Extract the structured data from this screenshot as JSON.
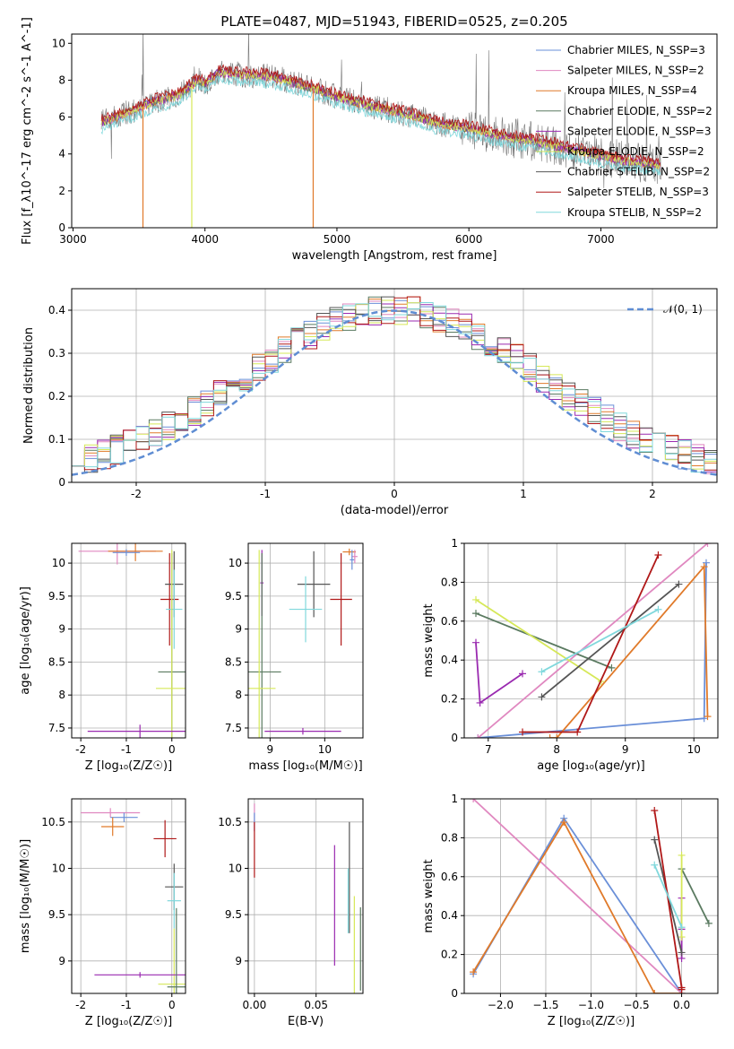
{
  "figure_title": "PLATE=0487, MJD=51943, FIBERID=0525, z=0.205",
  "colors": {
    "Chabrier MILES": "#6a8fd8",
    "Salpeter MILES": "#e088c0",
    "Kroupa MILES": "#e07a2a",
    "Chabrier ELODIE": "#5a7a60",
    "Salpeter ELODIE": "#9a2ab0",
    "Kroupa ELODIE": "#d6e858",
    "Chabrier STELIB": "#555555",
    "Salpeter STELIB": "#b01818",
    "Kroupa STELIB": "#80d8dc"
  },
  "chart_data": [
    {
      "id": "spectrum",
      "type": "line",
      "xlabel": "wavelength [Angstrom, rest frame]",
      "ylabel": "Flux [f_λ10^-17 erg cm^-2 s^-1 A^-1]",
      "xlim": [
        2990,
        7880
      ],
      "ylim": [
        0,
        10.5
      ],
      "xticks": [
        3000,
        4000,
        5000,
        6000,
        7000
      ],
      "yticks": [
        0,
        2,
        4,
        6,
        8,
        10
      ],
      "data_range": [
        3215,
        7455
      ],
      "legend": [
        {
          "label": "Chabrier MILES, N_SSP=3",
          "color": "#6a8fd8"
        },
        {
          "label": "Salpeter MILES, N_SSP=2",
          "color": "#e088c0"
        },
        {
          "label": "Kroupa MILES, N_SSP=4",
          "color": "#e07a2a"
        },
        {
          "label": "Chabrier ELODIE, N_SSP=2",
          "color": "#5a7a60"
        },
        {
          "label": "Salpeter ELODIE, N_SSP=3",
          "color": "#9a2ab0"
        },
        {
          "label": "Kroupa ELODIE, N_SSP=2",
          "color": "#d6e858"
        },
        {
          "label": "Chabrier STELIB, N_SSP=2",
          "color": "#555555"
        },
        {
          "label": "Salpeter STELIB, N_SSP=3",
          "color": "#b01818"
        },
        {
          "label": "Kroupa STELIB, N_SSP=2",
          "color": "#80d8dc"
        }
      ],
      "continuum_x": [
        3215,
        3400,
        3600,
        3800,
        3950,
        4000,
        4100,
        4300,
        4500,
        4800,
        5000,
        5200,
        5500,
        5800,
        6000,
        6300,
        6500,
        6800,
        7000,
        7200,
        7455
      ],
      "continuum_y": [
        5.7,
        6.2,
        6.8,
        7.2,
        8.0,
        7.8,
        8.4,
        8.3,
        8.2,
        7.6,
        7.1,
        6.7,
        6.2,
        5.6,
        5.4,
        4.9,
        4.7,
        4.2,
        3.9,
        3.6,
        3.4
      ],
      "dips": [
        {
          "x": 3530,
          "color": "#e07a2a"
        },
        {
          "x": 3900,
          "color": "#d6e858"
        },
        {
          "x": 4820,
          "color": "#e07a2a"
        }
      ]
    },
    {
      "id": "residuals",
      "type": "histogram",
      "xlabel": "(data-model)/error",
      "ylabel": "Normed distribution",
      "xlim": [
        -2.5,
        2.5
      ],
      "ylim": [
        0,
        0.45
      ],
      "xticks": [
        -2,
        -1,
        0,
        1,
        2
      ],
      "yticks": [
        0.0,
        0.1,
        0.2,
        0.3,
        0.4
      ],
      "bin_width": 0.1,
      "legend": [
        {
          "label": "𝒩(0, 1)",
          "color": "#5f8dd3"
        }
      ],
      "gaussian": {
        "mu": 0,
        "sigma": 1,
        "color": "#5f8dd3"
      }
    },
    {
      "id": "age_vs_Z",
      "type": "errorbar",
      "xlabel": "Z [log₁₀(Z/Z☉)]",
      "ylabel": "age  [log₁₀(age/yr)]",
      "xlim": [
        -2.2,
        0.3
      ],
      "ylim": [
        7.35,
        10.3
      ],
      "xticks": [
        -2,
        -1,
        0
      ],
      "yticks": [
        7.5,
        8.0,
        8.5,
        9.0,
        9.5,
        10.0
      ],
      "points": [
        {
          "color": "#e088c0",
          "x": -1.2,
          "y": 10.18,
          "xerr": 0.85,
          "yerr": 0.2
        },
        {
          "color": "#e07a2a",
          "x": -0.8,
          "y": 10.18,
          "xerr": 0.6,
          "yerr": 0.15
        },
        {
          "color": "#6a8fd8",
          "x": -1.0,
          "y": 10.16,
          "xerr": 0.3,
          "yerr": 0.05
        },
        {
          "color": "#b01818",
          "x": -0.05,
          "y": 9.45,
          "xerr": 0.2,
          "yerr": 0.7
        },
        {
          "color": "#555555",
          "x": 0.05,
          "y": 9.68,
          "xerr": 0.2,
          "yerr": 0.5
        },
        {
          "color": "#80d8dc",
          "x": 0.05,
          "y": 9.3,
          "xerr": 0.18,
          "yerr": 0.6
        },
        {
          "color": "#5a7a60",
          "x": 0.0,
          "y": 8.35,
          "xerr": 0.3,
          "yerr": 1.8
        },
        {
          "color": "#d6e858",
          "x": 0.0,
          "y": 8.1,
          "xerr": 0.35,
          "yerr": 2.1
        },
        {
          "color": "#9a2ab0",
          "x": -0.7,
          "y": 7.45,
          "xerr": 1.15,
          "yerr": 0.1
        }
      ]
    },
    {
      "id": "age_vs_mass",
      "type": "errorbar",
      "xlabel": "mass [log₁₀(M/M☉)]",
      "ylabel": "",
      "xlim": [
        8.6,
        10.7
      ],
      "ylim": [
        7.35,
        10.3
      ],
      "xticks": [
        9,
        10
      ],
      "yticks": [
        7.5,
        8.0,
        8.5,
        9.0,
        9.5,
        10.0
      ],
      "points": [
        {
          "color": "#e07a2a",
          "x": 10.45,
          "y": 10.17,
          "xerr": 0.12,
          "yerr": 0.05
        },
        {
          "color": "#e088c0",
          "x": 10.55,
          "y": 10.1,
          "xerr": 0.05,
          "yerr": 0.1
        },
        {
          "color": "#6a8fd8",
          "x": 10.5,
          "y": 10.05,
          "xerr": 0.04,
          "yerr": 0.15
        },
        {
          "color": "#9a2ab0",
          "x": 8.85,
          "y": 9.7,
          "xerr": 0.03,
          "yerr": 0.5
        },
        {
          "color": "#555555",
          "x": 9.8,
          "y": 9.68,
          "xerr": 0.3,
          "yerr": 0.5
        },
        {
          "color": "#b01818",
          "x": 10.3,
          "y": 9.45,
          "xerr": 0.2,
          "yerr": 0.7
        },
        {
          "color": "#80d8dc",
          "x": 9.65,
          "y": 9.3,
          "xerr": 0.3,
          "yerr": 0.5
        },
        {
          "color": "#5a7a60",
          "x": 8.85,
          "y": 8.35,
          "xerr": 0.35,
          "yerr": 1.8
        },
        {
          "color": "#d6e858",
          "x": 8.8,
          "y": 8.1,
          "xerr": 0.3,
          "yerr": 2.1
        },
        {
          "color": "#9a2ab0",
          "x": 9.6,
          "y": 7.45,
          "xerr": 0.7,
          "yerr": 0.05
        }
      ]
    },
    {
      "id": "mass_weight_vs_age",
      "type": "line",
      "xlabel": "age  [log₁₀(age/yr)]",
      "ylabel": "mass weight",
      "xlim": [
        6.65,
        10.35
      ],
      "ylim": [
        0,
        1
      ],
      "xticks": [
        7,
        8,
        9,
        10
      ],
      "yticks": [
        0.0,
        0.2,
        0.4,
        0.6,
        0.8,
        1.0
      ],
      "series": [
        {
          "color": "#6a8fd8",
          "x": [
            6.85,
            10.15,
            10.18
          ],
          "y": [
            0.0,
            0.1,
            0.9
          ]
        },
        {
          "color": "#e088c0",
          "x": [
            6.85,
            10.2
          ],
          "y": [
            0.0,
            1.0
          ]
        },
        {
          "color": "#e07a2a",
          "x": [
            7.9,
            8.0,
            10.15,
            10.2
          ],
          "y": [
            0.0,
            0.0,
            0.88,
            0.11
          ]
        },
        {
          "color": "#5a7a60",
          "x": [
            6.82,
            8.8
          ],
          "y": [
            0.64,
            0.36
          ]
        },
        {
          "color": "#9a2ab0",
          "x": [
            6.82,
            6.88,
            7.5
          ],
          "y": [
            0.49,
            0.18,
            0.33
          ]
        },
        {
          "color": "#d6e858",
          "x": [
            6.82,
            8.65
          ],
          "y": [
            0.71,
            0.29
          ]
        },
        {
          "color": "#555555",
          "x": [
            7.78,
            9.78
          ],
          "y": [
            0.21,
            0.79
          ]
        },
        {
          "color": "#b01818",
          "x": [
            7.5,
            8.3,
            9.48
          ],
          "y": [
            0.03,
            0.03,
            0.94
          ]
        },
        {
          "color": "#80d8dc",
          "x": [
            7.78,
            9.48
          ],
          "y": [
            0.34,
            0.66
          ]
        }
      ]
    },
    {
      "id": "mass_vs_Z",
      "type": "errorbar",
      "xlabel": "Z [log₁₀(Z/Z☉)]",
      "ylabel": "mass [log₁₀(M/M☉)]",
      "xlim": [
        -2.2,
        0.3
      ],
      "ylim": [
        8.65,
        10.75
      ],
      "xticks": [
        -2,
        -1,
        0
      ],
      "yticks": [
        9.0,
        9.5,
        10.0,
        10.5
      ],
      "points": [
        {
          "color": "#e088c0",
          "x": -1.35,
          "y": 10.6,
          "xerr": 0.65,
          "yerr": 0.05
        },
        {
          "color": "#6a8fd8",
          "x": -1.05,
          "y": 10.55,
          "xerr": 0.3,
          "yerr": 0.05
        },
        {
          "color": "#e07a2a",
          "x": -1.3,
          "y": 10.45,
          "xerr": 0.25,
          "yerr": 0.1
        },
        {
          "color": "#b01818",
          "x": -0.15,
          "y": 10.32,
          "xerr": 0.25,
          "yerr": 0.2
        },
        {
          "color": "#555555",
          "x": 0.05,
          "y": 9.8,
          "xerr": 0.2,
          "yerr": 0.25
        },
        {
          "color": "#80d8dc",
          "x": 0.05,
          "y": 9.65,
          "xerr": 0.15,
          "yerr": 0.3
        },
        {
          "color": "#d6e858",
          "x": 0.05,
          "y": 8.75,
          "xerr": 0.35,
          "yerr": 0.6
        },
        {
          "color": "#9a2ab0",
          "x": -0.7,
          "y": 8.85,
          "xerr": 1.0,
          "yerr": 0.03
        },
        {
          "color": "#5a7a60",
          "x": 0.1,
          "y": 8.72,
          "xerr": 0.2,
          "yerr": 0.85
        }
      ]
    },
    {
      "id": "mass_vs_ebv",
      "type": "errorbar",
      "xlabel": "E(B-V)",
      "ylabel": "",
      "xlim": [
        -0.005,
        0.088
      ],
      "ylim": [
        8.65,
        10.75
      ],
      "xticks": [
        0.0,
        0.05
      ],
      "xtick_labels": [
        "0.00",
        "0.05"
      ],
      "yticks": [
        9.0,
        9.5,
        10.0,
        10.5
      ],
      "points": [
        {
          "color": "#e088c0",
          "x": 0.0,
          "y": 10.55,
          "xerr": 0,
          "yerr": 0.15
        },
        {
          "color": "#6a8fd8",
          "x": 0.0,
          "y": 10.5,
          "xerr": 0,
          "yerr": 0.1
        },
        {
          "color": "#b01818",
          "x": 0.0,
          "y": 10.2,
          "xerr": 0,
          "yerr": 0.3
        },
        {
          "color": "#9a2ab0",
          "x": 0.065,
          "y": 9.6,
          "xerr": 0,
          "yerr": 0.65
        },
        {
          "color": "#555555",
          "x": 0.077,
          "y": 9.9,
          "xerr": 0,
          "yerr": 0.6
        },
        {
          "color": "#80d8dc",
          "x": 0.076,
          "y": 9.65,
          "xerr": 0,
          "yerr": 0.35
        },
        {
          "color": "#d6e858",
          "x": 0.081,
          "y": 9.05,
          "xerr": 0,
          "yerr": 0.65
        },
        {
          "color": "#5a7a60",
          "x": 0.086,
          "y": 9.13,
          "xerr": 0,
          "yerr": 0.45
        }
      ]
    },
    {
      "id": "mass_weight_vs_Z",
      "type": "line",
      "xlabel": "Z [log₁₀(Z/Z☉)]",
      "ylabel": "mass weight",
      "xlim": [
        -2.4,
        0.4
      ],
      "ylim": [
        0,
        1
      ],
      "xticks": [
        -2.0,
        -1.5,
        -1.0,
        -0.5,
        0.0
      ],
      "xtick_labels": [
        "−2.0",
        "−1.5",
        "−1.0",
        "−0.5",
        "0.0"
      ],
      "yticks": [
        0.0,
        0.2,
        0.4,
        0.6,
        0.8,
        1.0
      ],
      "series": [
        {
          "color": "#6a8fd8",
          "x": [
            -2.3,
            -1.3,
            0.0
          ],
          "y": [
            0.1,
            0.9,
            0.0
          ]
        },
        {
          "color": "#e088c0",
          "x": [
            -2.3,
            0.0
          ],
          "y": [
            1.0,
            0.0
          ]
        },
        {
          "color": "#e07a2a",
          "x": [
            -2.3,
            -1.3,
            -0.3,
            0.0
          ],
          "y": [
            0.11,
            0.88,
            0.0,
            0.0
          ]
        },
        {
          "color": "#5a7a60",
          "x": [
            0.0,
            0.3
          ],
          "y": [
            0.64,
            0.36
          ]
        },
        {
          "color": "#9a2ab0",
          "x": [
            0.0,
            0.0,
            0.0
          ],
          "y": [
            0.49,
            0.18,
            0.33
          ]
        },
        {
          "color": "#d6e858",
          "x": [
            0.0,
            0.0
          ],
          "y": [
            0.71,
            0.29
          ]
        },
        {
          "color": "#555555",
          "x": [
            -0.3,
            0.0
          ],
          "y": [
            0.79,
            0.21
          ]
        },
        {
          "color": "#b01818",
          "x": [
            -0.3,
            0.0,
            0.0
          ],
          "y": [
            0.94,
            0.03,
            0.02
          ]
        },
        {
          "color": "#80d8dc",
          "x": [
            -0.3,
            0.0
          ],
          "y": [
            0.66,
            0.34
          ]
        }
      ]
    }
  ]
}
